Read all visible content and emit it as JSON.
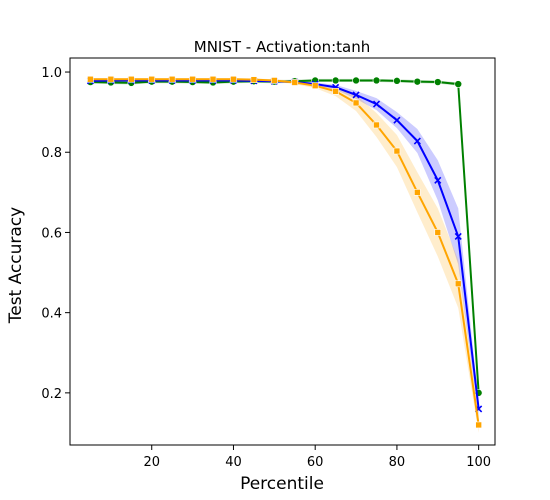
{
  "chart_data": {
    "type": "line",
    "title": "MNIST - Activation:tanh",
    "xlabel": "Percentile",
    "ylabel": "Test Accuracy",
    "xlim": [
      0,
      104
    ],
    "ylim": [
      0.07,
      1.035
    ],
    "xticks": [
      20,
      40,
      60,
      80,
      100
    ],
    "yticks": [
      0.2,
      0.4,
      0.6,
      0.8,
      1.0
    ],
    "grid": false,
    "x": [
      5,
      10,
      15,
      20,
      25,
      30,
      35,
      40,
      45,
      50,
      55,
      60,
      65,
      70,
      75,
      80,
      85,
      90,
      95,
      100
    ],
    "series": [
      {
        "marker": "circle",
        "color": "#008000",
        "values": [
          0.975,
          0.974,
          0.973,
          0.976,
          0.976,
          0.975,
          0.974,
          0.976,
          0.977,
          0.976,
          0.977,
          0.979,
          0.979,
          0.979,
          0.979,
          0.978,
          0.976,
          0.975,
          0.97,
          0.2
        ],
        "band": [
          0.004,
          0.004,
          0.004,
          0.004,
          0.004,
          0.004,
          0.004,
          0.004,
          0.004,
          0.004,
          0.004,
          0.004,
          0.004,
          0.004,
          0.004,
          0.004,
          0.004,
          0.004,
          0.004,
          0.01
        ]
      },
      {
        "marker": "x",
        "color": "#0000ff",
        "values": [
          0.978,
          0.979,
          0.979,
          0.979,
          0.979,
          0.979,
          0.979,
          0.979,
          0.978,
          0.977,
          0.975,
          0.97,
          0.962,
          0.943,
          0.92,
          0.88,
          0.828,
          0.73,
          0.59,
          0.16
        ],
        "band": [
          0.003,
          0.003,
          0.003,
          0.003,
          0.003,
          0.003,
          0.003,
          0.003,
          0.003,
          0.003,
          0.003,
          0.004,
          0.006,
          0.01,
          0.015,
          0.02,
          0.03,
          0.05,
          0.07,
          0.02
        ]
      },
      {
        "marker": "square",
        "color": "#ffa500",
        "values": [
          0.982,
          0.982,
          0.982,
          0.982,
          0.982,
          0.982,
          0.982,
          0.982,
          0.981,
          0.979,
          0.974,
          0.966,
          0.952,
          0.923,
          0.868,
          0.803,
          0.7,
          0.6,
          0.472,
          0.12
        ],
        "band": [
          0.003,
          0.003,
          0.003,
          0.003,
          0.003,
          0.003,
          0.003,
          0.003,
          0.003,
          0.003,
          0.004,
          0.006,
          0.012,
          0.02,
          0.03,
          0.04,
          0.05,
          0.06,
          0.06,
          0.02
        ]
      }
    ]
  }
}
